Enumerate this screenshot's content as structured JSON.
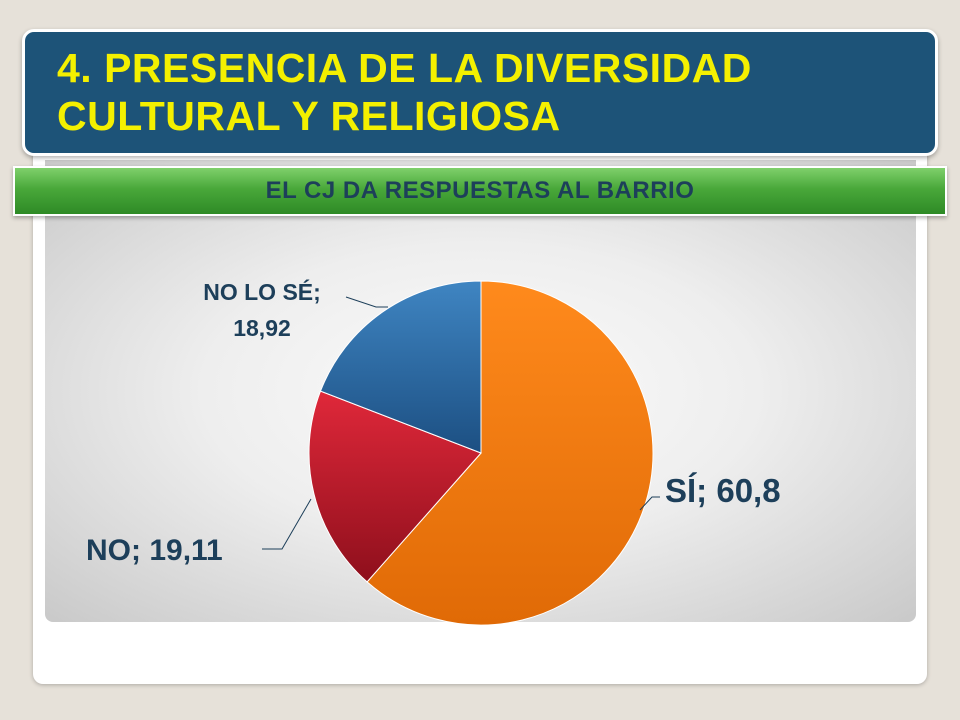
{
  "slide": {
    "title": "4. PRESENCIA DE LA DIVERSIDAD CULTURAL Y RELIGIOSA",
    "subtitle": "EL CJ DA RESPUESTAS AL BARRIO"
  },
  "colors": {
    "title_bg": "#1d5378",
    "title_text": "#f4f000",
    "ribbon_green": "#49a83a",
    "label_text": "#1d3f5a"
  },
  "chart_data": {
    "type": "pie",
    "title": "EL CJ DA RESPUESTAS AL BARRIO",
    "slices": [
      {
        "label": "SÍ",
        "value": 60.8,
        "display": "SÍ; 60,8",
        "color": "#f07b10"
      },
      {
        "label": "NO",
        "value": 19.11,
        "display": "NO; 19,11",
        "color": "#c01a2c"
      },
      {
        "label": "NO LO SÉ",
        "value": 18.92,
        "display_lines": [
          "NO LO SÉ;",
          "18,92"
        ],
        "color": "#2b6aa5"
      }
    ],
    "legend": "none",
    "data_labels": "outside with leader lines"
  }
}
